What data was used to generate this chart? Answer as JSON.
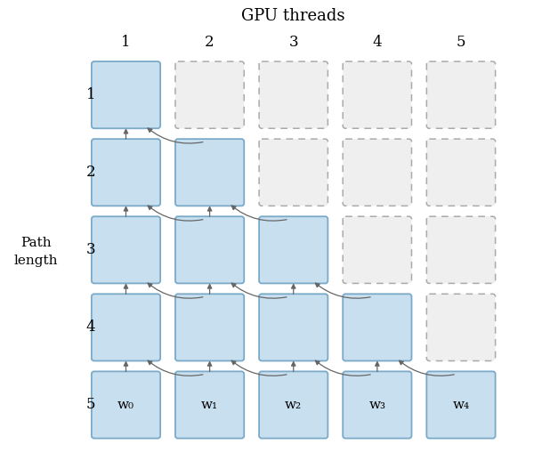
{
  "title": "GPU threads",
  "path_label_line1": "Path",
  "path_label_line2": "length",
  "n_rows": 5,
  "n_cols": 5,
  "col_labels": [
    "1",
    "2",
    "3",
    "4",
    "5"
  ],
  "row_labels": [
    "1",
    "2",
    "3",
    "4",
    "5"
  ],
  "w_labels": [
    "w₀",
    "w₁",
    "w₂",
    "w₃",
    "w₄"
  ],
  "blue_fill": "#c8dff0",
  "blue_edge": "#7aaac8",
  "gray_fill": "#efefef",
  "gray_edge": "#aaaaaa",
  "arrow_color": "#666666",
  "background": "#ffffff",
  "figsize": [
    6.0,
    5.27
  ],
  "dpi": 100
}
